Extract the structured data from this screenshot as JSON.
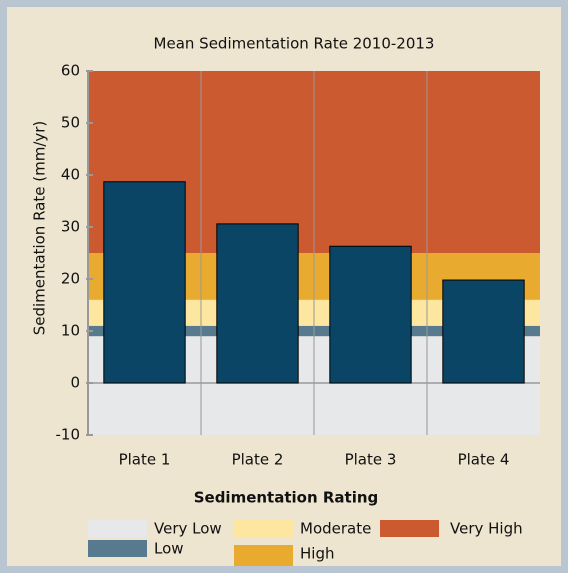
{
  "chart_data": {
    "type": "bar",
    "title": "Mean Sedimentation Rate 2010-2013",
    "ylabel": "Sedimentation Rate (mm/yr)",
    "categories": [
      "Plate 1",
      "Plate 2",
      "Plate 3",
      "Plate 4"
    ],
    "values": [
      38.7,
      30.6,
      26.3,
      19.8
    ],
    "color": "#0b4566",
    "ylim": [
      -10,
      60
    ],
    "yticks": [
      -10,
      0,
      10,
      20,
      30,
      40,
      50,
      60
    ],
    "legend_title": "Sedimentation Rating",
    "bands": [
      {
        "name": "Very Low",
        "from": -10,
        "to": 9,
        "color": "#e6e8ea"
      },
      {
        "name": "Low",
        "from": 9,
        "to": 11,
        "color": "#587a8e"
      },
      {
        "name": "Moderate",
        "from": 11,
        "to": 16,
        "color": "#fde6a0"
      },
      {
        "name": "High",
        "from": 16,
        "to": 25,
        "color": "#e8ab30"
      },
      {
        "name": "Very High",
        "from": 25,
        "to": 60,
        "color": "#cc5a30"
      }
    ]
  }
}
